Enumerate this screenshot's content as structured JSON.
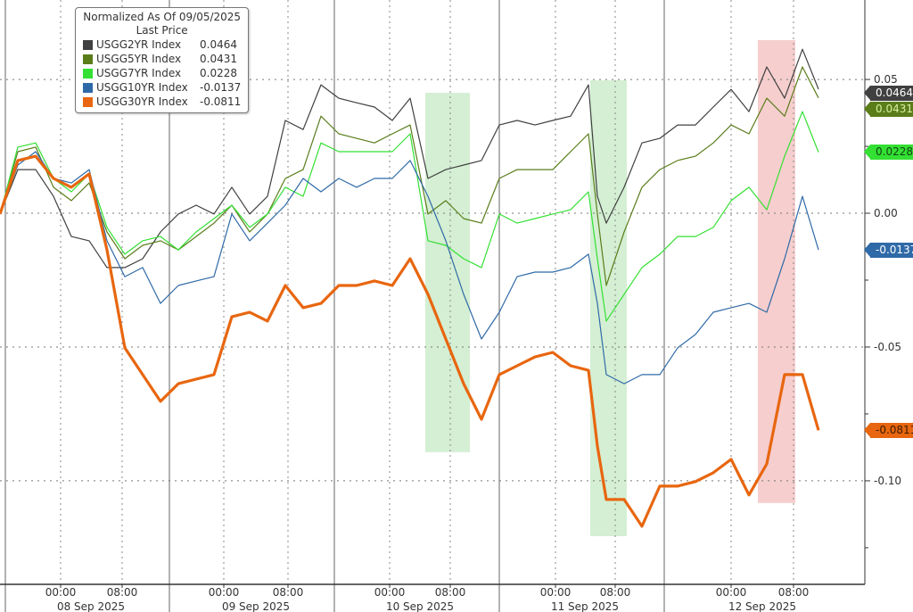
{
  "legend": {
    "title": "Normalized As Of 09/05/2025",
    "subtitle": "Last Price",
    "items": [
      {
        "name": "USGG2YR Index",
        "value": "0.0464",
        "color": "#404040"
      },
      {
        "name": "USGG5YR Index",
        "value": "0.0431",
        "color": "#5a7d1a"
      },
      {
        "name": "USGG7YR Index",
        "value": "0.0228",
        "color": "#33e033"
      },
      {
        "name": "USGG10YR Index",
        "value": "-0.0137",
        "color": "#2f6aa8"
      },
      {
        "name": "USGG30YR Index",
        "value": "-0.0811",
        "color": "#e8660f"
      }
    ]
  },
  "chart_data": {
    "type": "line",
    "title": "Normalized As Of 09/05/2025 - Last Price",
    "xlabel": "",
    "ylabel": "",
    "x": [
      0,
      2,
      4,
      6,
      8,
      10,
      12,
      14,
      16,
      18,
      20,
      22,
      24,
      26,
      28,
      30,
      32,
      34,
      36,
      38,
      40,
      42,
      44,
      46,
      48,
      50,
      52,
      54,
      56,
      58,
      60,
      62,
      64,
      66,
      67,
      68,
      70,
      72,
      74,
      76,
      78,
      80,
      82,
      84,
      86,
      88,
      90,
      91.8
    ],
    "xlim": [
      0,
      97
    ],
    "ylim": [
      -0.1387,
      0.0797
    ],
    "yticks": [
      {
        "value": 0.05,
        "label": "0.05"
      },
      {
        "value": 0.0,
        "label": "0.00"
      },
      {
        "value": -0.05,
        "label": "-0.05"
      },
      {
        "value": -0.1,
        "label": "-0.10"
      }
    ],
    "minor_yticks": [
      0.025,
      -0.025,
      -0.075,
      -0.125
    ],
    "grid": true,
    "y_axis_side": "right",
    "time_ticks": [
      {
        "x": 6.8,
        "label": "00:00"
      },
      {
        "x": 13.7,
        "label": "08:00"
      },
      {
        "x": 25.1,
        "label": "00:00"
      },
      {
        "x": 32.3,
        "label": "08:00"
      },
      {
        "x": 43.7,
        "label": "00:00"
      },
      {
        "x": 50.5,
        "label": "08:00"
      },
      {
        "x": 62.3,
        "label": "00:00"
      },
      {
        "x": 69.0,
        "label": "08:00"
      },
      {
        "x": 82.0,
        "label": "00:00"
      },
      {
        "x": 89.0,
        "label": "08:00"
      }
    ],
    "day_separators": [
      0.6,
      19.0,
      37.5,
      56.0,
      74.5
    ],
    "day_labels": [
      {
        "x": 10.2,
        "label": "08 Sep 2025"
      },
      {
        "x": 28.7,
        "label": "09 Sep 2025"
      },
      {
        "x": 47.1,
        "label": "10 Sep 2025"
      },
      {
        "x": 65.6,
        "label": "11 Sep 2025"
      },
      {
        "x": 85.5,
        "label": "12 Sep 2025"
      }
    ],
    "highlights": [
      {
        "x0": 47.7,
        "x1": 52.7,
        "y0": -0.0893,
        "y1": 0.045,
        "color": "#cdeccb"
      },
      {
        "x0": 66.2,
        "x1": 70.3,
        "y0": -0.1207,
        "y1": 0.0497,
        "color": "#cdeccb"
      },
      {
        "x0": 85.0,
        "x1": 89.2,
        "y0": -0.1083,
        "y1": 0.0647,
        "color": "#f5c6c6"
      }
    ],
    "series": [
      {
        "name": "USGG2YR Index",
        "color": "#404040",
        "width": 1.2,
        "last": "0.0464",
        "label_color": "#ffffff",
        "values": [
          -0.0003,
          0.0163,
          0.0163,
          0.0063,
          -0.0087,
          -0.0103,
          -0.0203,
          -0.0203,
          -0.017,
          -0.007,
          -0.0003,
          0.003,
          -0.0003,
          0.0097,
          -0.0003,
          0.0063,
          0.0347,
          0.0313,
          0.048,
          0.043,
          0.0413,
          0.0397,
          0.0347,
          0.043,
          0.013,
          0.0163,
          0.018,
          0.0197,
          0.033,
          0.0347,
          0.033,
          0.0347,
          0.0363,
          0.048,
          0.0063,
          -0.0037,
          0.0097,
          0.0263,
          0.028,
          0.033,
          0.033,
          0.0397,
          0.0463,
          0.038,
          0.0547,
          0.043,
          0.0613,
          0.0464
        ]
      },
      {
        "name": "USGG5YR Index",
        "color": "#5a7d1a",
        "width": 1.2,
        "last": "0.0431",
        "label_color": "#d8f0a0",
        "values": [
          -0.0003,
          0.023,
          0.0247,
          0.0097,
          0.0047,
          0.0113,
          -0.007,
          -0.017,
          -0.012,
          -0.0103,
          -0.0137,
          -0.0087,
          -0.0037,
          0.003,
          -0.007,
          -0.0003,
          0.013,
          0.0163,
          0.0363,
          0.0297,
          0.028,
          0.0263,
          0.0297,
          0.033,
          -0.0003,
          0.0047,
          -0.002,
          -0.0037,
          0.013,
          0.0163,
          0.0163,
          0.0163,
          0.023,
          0.0297,
          -0.0003,
          -0.027,
          -0.007,
          0.0097,
          0.0163,
          0.0197,
          0.0213,
          0.0263,
          0.033,
          0.0297,
          0.043,
          0.0363,
          0.0547,
          0.0431
        ]
      },
      {
        "name": "USGG7YR Index",
        "color": "#33e033",
        "width": 1.2,
        "last": "0.0228",
        "label_color": "#114411",
        "values": [
          -0.0003,
          0.0247,
          0.0263,
          0.013,
          0.008,
          0.0147,
          -0.0053,
          -0.0153,
          -0.0103,
          -0.0087,
          -0.0137,
          -0.007,
          -0.002,
          0.003,
          -0.0053,
          -0.0003,
          0.0097,
          0.0063,
          0.0263,
          0.023,
          0.023,
          0.023,
          0.023,
          0.0297,
          -0.0103,
          -0.012,
          -0.017,
          -0.0203,
          -0.0003,
          -0.0037,
          -0.002,
          -0.0003,
          0.0013,
          0.008,
          -0.017,
          -0.0403,
          -0.0303,
          -0.0203,
          -0.0153,
          -0.0087,
          -0.0087,
          -0.0053,
          0.0047,
          0.0097,
          0.0013,
          0.0213,
          0.038,
          0.0228
        ]
      },
      {
        "name": "USGG10YR Index",
        "color": "#2f6aa8",
        "width": 1.2,
        "last": "-0.0137",
        "label_color": "#ffffff",
        "values": [
          -0.0003,
          0.018,
          0.023,
          0.013,
          0.0113,
          0.0163,
          -0.0103,
          -0.0237,
          -0.0203,
          -0.0337,
          -0.027,
          -0.0253,
          -0.0237,
          -0.0003,
          -0.0103,
          -0.0037,
          0.003,
          0.013,
          0.008,
          0.013,
          0.0097,
          0.013,
          0.013,
          0.0197,
          0.0063,
          -0.0103,
          -0.0303,
          -0.047,
          -0.037,
          -0.0237,
          -0.022,
          -0.022,
          -0.0203,
          -0.0153,
          -0.0337,
          -0.0603,
          -0.0637,
          -0.0603,
          -0.0603,
          -0.0503,
          -0.0453,
          -0.037,
          -0.0353,
          -0.0337,
          -0.037,
          -0.017,
          0.0063,
          -0.0137
        ]
      },
      {
        "name": "USGG30YR Index",
        "color": "#e8660f",
        "width": 3.2,
        "last": "-0.0811",
        "label_color": "#3a1a00",
        "values": [
          -0.0003,
          0.0197,
          0.0213,
          0.013,
          0.0097,
          0.0147,
          -0.0137,
          -0.0503,
          -0.0603,
          -0.0703,
          -0.0637,
          -0.062,
          -0.0603,
          -0.0387,
          -0.037,
          -0.0403,
          -0.027,
          -0.0353,
          -0.0337,
          -0.027,
          -0.027,
          -0.0253,
          -0.027,
          -0.017,
          -0.0303,
          -0.047,
          -0.0637,
          -0.077,
          -0.0603,
          -0.057,
          -0.0537,
          -0.052,
          -0.057,
          -0.0587,
          -0.087,
          -0.107,
          -0.107,
          -0.117,
          -0.102,
          -0.102,
          -0.1003,
          -0.097,
          -0.092,
          -0.1053,
          -0.0937,
          -0.0603,
          -0.0603,
          -0.0811
        ]
      }
    ]
  }
}
